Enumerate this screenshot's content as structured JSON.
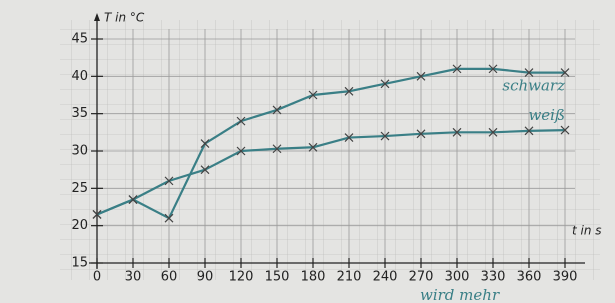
{
  "chart_data": {
    "type": "line",
    "y_label": "T in °C",
    "x_label": "t in s",
    "x": [
      0,
      30,
      60,
      90,
      120,
      150,
      180,
      210,
      240,
      270,
      300,
      330,
      360,
      390
    ],
    "series": [
      {
        "name": "schwarz",
        "color": "#3a7f86",
        "values": [
          21.5,
          23.5,
          21,
          31,
          34,
          35.5,
          37.5,
          38,
          39,
          40,
          41,
          41,
          40.5,
          40.5
        ]
      },
      {
        "name": "weiß",
        "color": "#3a7f86",
        "values": [
          21.5,
          23.5,
          26,
          27.5,
          30,
          30.3,
          30.5,
          31.8,
          32,
          32.3,
          32.5,
          32.5,
          32.7,
          32.8
        ]
      }
    ],
    "xlim": [
      0,
      390
    ],
    "xticks": [
      0,
      30,
      60,
      90,
      120,
      150,
      180,
      210,
      240,
      270,
      300,
      330,
      360,
      390
    ],
    "ylim": [
      15,
      45
    ],
    "yticks": [
      15,
      20,
      25,
      30,
      35,
      40,
      45
    ],
    "grid": true,
    "note": "wird mehr"
  }
}
